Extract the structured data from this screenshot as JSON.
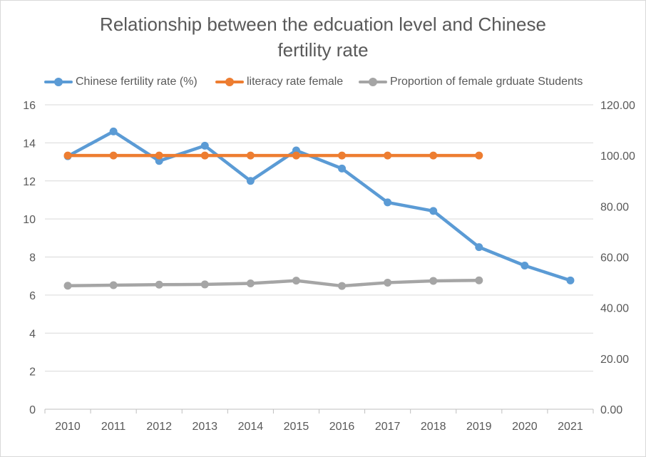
{
  "chart_data": {
    "type": "line",
    "title_line1": "Relationship between the edcuation level and Chinese",
    "title_line2": "fertility rate",
    "categories": [
      "2010",
      "2011",
      "2012",
      "2013",
      "2014",
      "2015",
      "2016",
      "2017",
      "2018",
      "2019",
      "2020",
      "2021"
    ],
    "y_left": {
      "min": 0,
      "max": 16,
      "ticks": [
        "0",
        "2",
        "4",
        "6",
        "8",
        "10",
        "12",
        "14",
        "16"
      ]
    },
    "y_right": {
      "min": 0,
      "max": 120,
      "ticks": [
        "0.00",
        "20.00",
        "40.00",
        "60.00",
        "80.00",
        "100.00",
        "120.00"
      ]
    },
    "gridlines": true,
    "legend_position": "top",
    "series": [
      {
        "name": "Chinese fertility rate (%)",
        "axis": "left",
        "color": "#5b9bd5",
        "values": [
          13.3,
          14.6,
          13.05,
          13.85,
          12.0,
          13.6,
          12.65,
          10.87,
          10.42,
          8.52,
          7.55,
          6.77
        ]
      },
      {
        "name": "literacy rate female",
        "axis": "right",
        "color": "#ed7d31",
        "values": [
          100,
          100,
          100,
          100,
          100,
          100,
          100,
          100,
          100,
          100,
          null,
          null
        ]
      },
      {
        "name": "Proportion of female grduate Students",
        "axis": "right",
        "color": "#a5a5a5",
        "values": [
          48.7,
          48.9,
          49.1,
          49.2,
          49.6,
          50.7,
          48.6,
          49.9,
          50.6,
          50.8,
          null,
          null
        ]
      }
    ]
  }
}
